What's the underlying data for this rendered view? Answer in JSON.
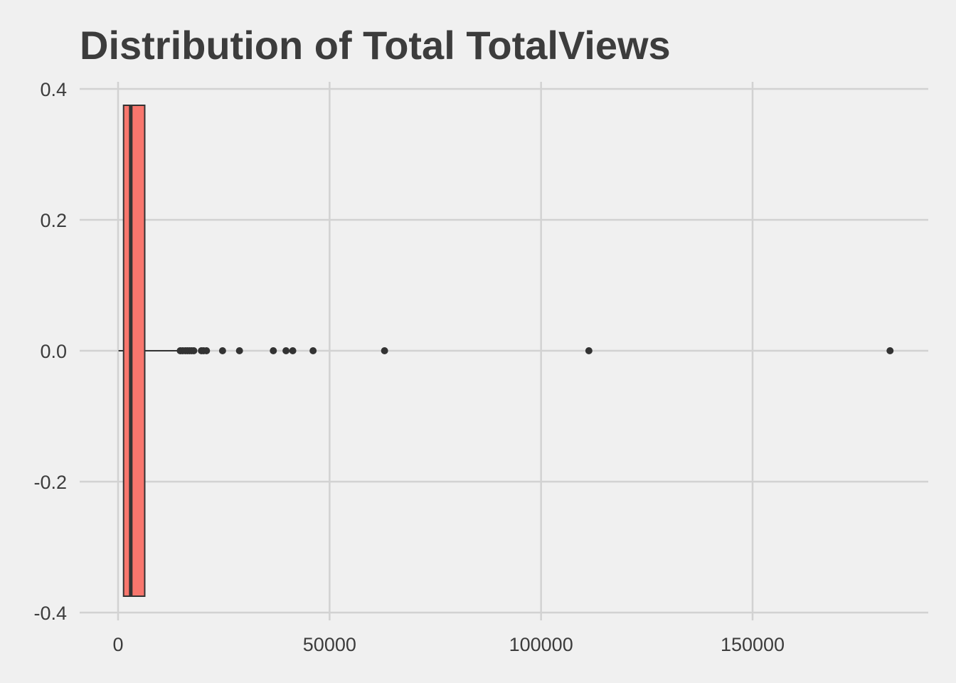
{
  "chart_data": {
    "type": "boxplot",
    "title": "Distribution of  Total TotalViews",
    "xlabel": "",
    "ylabel": "",
    "orientation": "horizontal",
    "xlim": [
      -7000,
      190000
    ],
    "ylim": [
      -0.4,
      0.4
    ],
    "x_ticks": [
      0,
      50000,
      100000,
      150000
    ],
    "x_tick_labels": [
      "0",
      "50000",
      "100000",
      "150000"
    ],
    "y_ticks": [
      0.4,
      0.2,
      0.0,
      -0.2,
      -0.4
    ],
    "y_tick_labels": [
      "0.4",
      "0.2",
      "0.0",
      "-0.2",
      "-0.4"
    ],
    "grid": true,
    "box": {
      "center": 0,
      "half_width": 0.375,
      "min": 100,
      "q1": 1300,
      "median": 3000,
      "q3": 6300,
      "whisker_high": 14000,
      "fill_color": "#f8766d",
      "line_color": "#333333"
    },
    "outliers": [
      14700,
      15300,
      15900,
      16400,
      16900,
      17400,
      17900,
      19700,
      20200,
      20900,
      24700,
      28700,
      36700,
      39700,
      41300,
      46100,
      63000,
      111300,
      182500
    ]
  }
}
